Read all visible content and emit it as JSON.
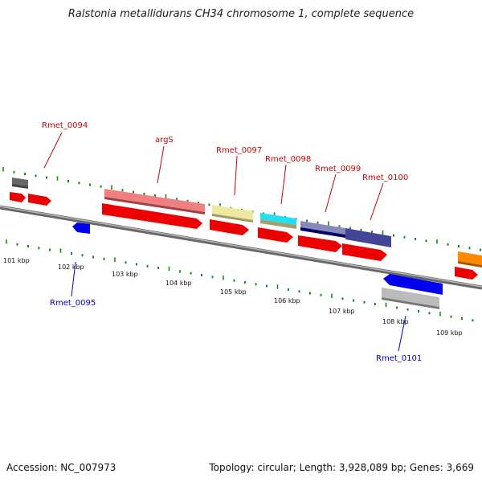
{
  "title": "Ralstonia metallidurans CH34 chromosome 1, complete sequence",
  "footer": {
    "accession": "Accession: NC_007973",
    "summary": "Topology: circular; Length: 3,928,089 bp; Genes: 3,669"
  },
  "colors": {
    "backbone": "#888888",
    "tick": "#1a8a1a",
    "forward_label": "#cc0000",
    "reverse_label": "#0000bb",
    "cds": "#ee0000"
  },
  "scale": {
    "unit": "kbp",
    "ticks": [
      {
        "label": "101 kbp"
      },
      {
        "label": "102 kbp"
      },
      {
        "label": "103 kbp"
      },
      {
        "label": "104 kbp"
      },
      {
        "label": "105 kbp"
      },
      {
        "label": "106 kbp"
      },
      {
        "label": "107 kbp"
      },
      {
        "label": "108 kbp"
      },
      {
        "label": "109 kbp"
      }
    ]
  },
  "genes": [
    {
      "name": "Rmet_0094",
      "strand": "forward"
    },
    {
      "name": "argS",
      "strand": "forward"
    },
    {
      "name": "Rmet_0097",
      "strand": "forward"
    },
    {
      "name": "Rmet_0098",
      "strand": "forward"
    },
    {
      "name": "Rmet_0099",
      "strand": "forward"
    },
    {
      "name": "Rmet_0100",
      "strand": "forward"
    },
    {
      "name": "Rmet_0095",
      "strand": "reverse"
    },
    {
      "name": "Rmet_0101",
      "strand": "reverse"
    }
  ],
  "feature_colors": [
    "#666666",
    "#f08080",
    "#eee8a0",
    "#22e0f0",
    "#303080",
    "#444499",
    "#ff8800",
    "#0000ee",
    "#bbbbbb"
  ]
}
